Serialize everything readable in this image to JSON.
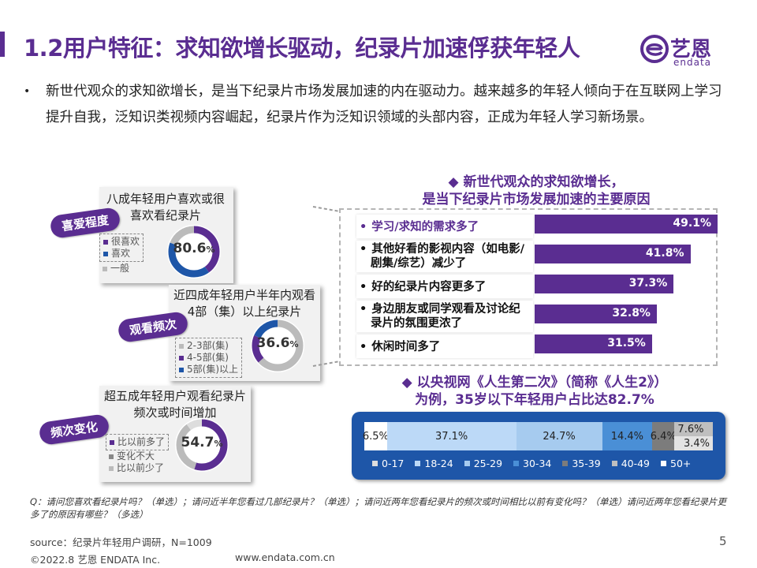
{
  "header": {
    "title": "1.2用户特征：求知欲增长驱动，纪录片加速俘获年轻人",
    "logo_cn": "艺恩",
    "logo_en": "endata"
  },
  "intro": {
    "bullet": "•",
    "text": "新世代观众的求知欲增长，是当下纪录片市场发展加速的内在驱动力。越来越多的年轻人倾向于在互联网上学习提升自我，泛知识类视频内容崛起，纪录片作为泛知识领域的头部内容，正成为年轻人学习新场景。"
  },
  "cards": [
    {
      "tag": "喜爱程度",
      "title": "八成年轻用户喜欢或很喜欢看纪录片",
      "value": "80.6",
      "unit": "%",
      "fraction": 0.806,
      "legend": [
        "很喜欢",
        "喜欢",
        "一般"
      ],
      "legend_colors": [
        "#5a2d91",
        "#1e56a8",
        "#bbbbbb"
      ],
      "segments": [
        0.4,
        0.406,
        0.194
      ],
      "segment_colors": [
        "#5a2d91",
        "#1e56a8",
        "#bbbbbb"
      ]
    },
    {
      "tag": "观看频次",
      "title": "近四成年轻用户半年内观看4部（集）以上纪录片",
      "value": "36.6",
      "unit": "%",
      "fraction": 0.366,
      "legend": [
        "2-3部(集)",
        "4-5部(集)",
        "5部(集)以上"
      ],
      "legend_colors": [
        "#bbbbbb",
        "#5a2d91",
        "#1e56a8"
      ],
      "segments": [
        0.634,
        0.18,
        0.186
      ],
      "segment_colors": [
        "#bbbbbb",
        "#5a2d91",
        "#1e56a8"
      ]
    },
    {
      "tag": "频次变化",
      "title": "超五成年轻用户观看纪录片频次或时间增加",
      "value": "54.7",
      "unit": "%",
      "fraction": 0.547,
      "legend": [
        "比以前多了",
        "变化不大",
        "比以前少了"
      ],
      "legend_colors": [
        "#5a2d91",
        "#888888",
        "#bbbbbb"
      ],
      "segments": [
        0.547,
        0.35,
        0.103
      ],
      "segment_colors": [
        "#5a2d91",
        "#bbbbbb",
        "#dddddd"
      ]
    }
  ],
  "reasons": {
    "title_line1": "◆  新世代观众的求知欲增长，",
    "title_line2": "是当下纪录片市场发展加速的主要原因",
    "items": [
      {
        "label": "学习/求知的需求多了",
        "value": 49.1,
        "display": "49.1%"
      },
      {
        "label": "其他好看的影视内容（如电影/剧集/综艺）减少了",
        "value": 41.8,
        "display": "41.8%"
      },
      {
        "label": "好的纪录片内容更多了",
        "value": 37.3,
        "display": "37.3%"
      },
      {
        "label": "身边朋友或同学观看及讨论纪录片的氛围更浓了",
        "value": 32.8,
        "display": "32.8%"
      },
      {
        "label": "休闲时间多了",
        "value": 31.5,
        "display": "31.5%"
      }
    ],
    "bar_color": "#5a2d91",
    "bullet": "•"
  },
  "age": {
    "title_line1": "◆  以央视网《人生第二次》（简称《人生2》）",
    "title_line2": "为例，35岁以下年轻用户占比达82.7%",
    "segments": [
      {
        "name": "0-17",
        "value": 6.5,
        "display": "6.5%",
        "color": "#ffffff",
        "legend_color": "#dddddd"
      },
      {
        "name": "18-24",
        "value": 37.1,
        "display": "37.1%",
        "color": "#bcd9f7",
        "legend_color": "#bcd9f7"
      },
      {
        "name": "25-29",
        "value": 24.7,
        "display": "24.7%",
        "color": "#a6cbef",
        "legend_color": "#a6cbef"
      },
      {
        "name": "30-34",
        "value": 14.4,
        "display": "14.4%",
        "color": "#4a8fd6",
        "legend_color": "#4a8fd6"
      },
      {
        "name": "35-39",
        "value": 6.4,
        "display": "6.4%",
        "color": "#7c7c7c",
        "legend_color": "#7c7c7c"
      },
      {
        "name": "40-49",
        "value": 7.6,
        "display": "7.6%",
        "color": "#bfbfbf",
        "legend_color": "#bfbfbf"
      },
      {
        "name": "50+",
        "value": 3.4,
        "display": "3.4%",
        "color": "#e3e3e3",
        "legend_color": "#ffffff"
      }
    ]
  },
  "footnote": "Q：请问您喜欢看纪录片吗？（单选）；请问近半年您看过几部纪录片？（单选）；请问近两年您看纪录片的频次或时间相比以前有变化吗？（单选）请问近两年您看纪录片更多了的原因有哪些？（多选）",
  "footer": {
    "source": "source：纪录片年轻用户调研，N=1009",
    "page": "5",
    "copyright": "©2022.8 艺恩 ENDATA Inc.",
    "website": "www.endata.com.cn"
  }
}
